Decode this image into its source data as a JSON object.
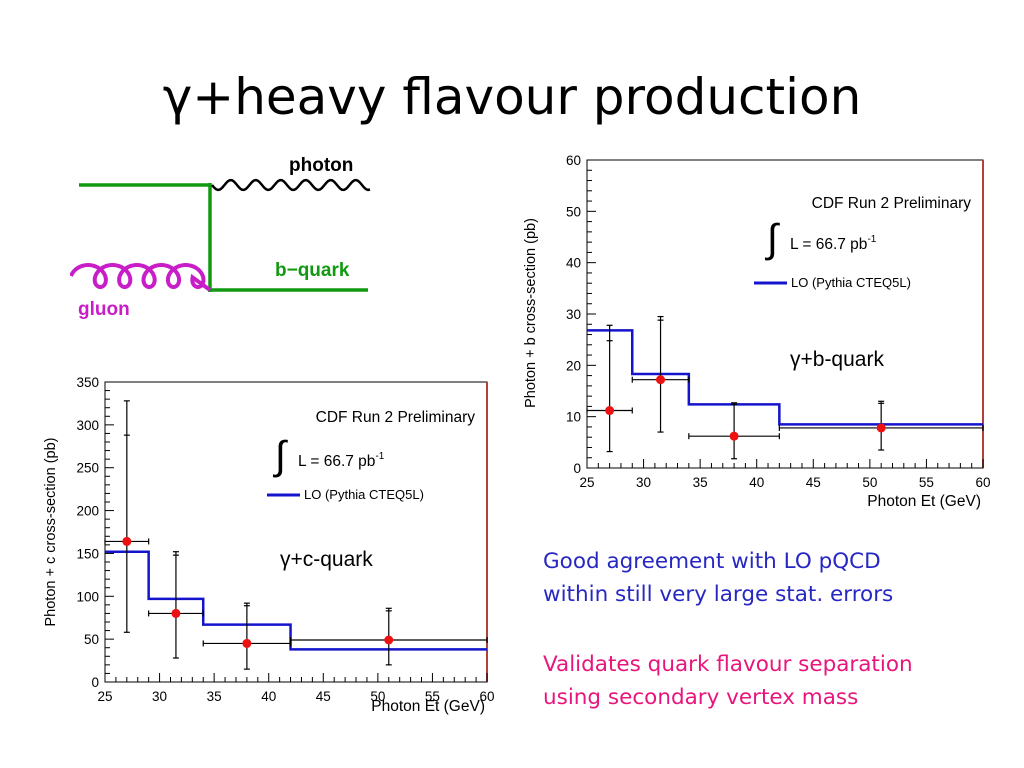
{
  "title": "γ+heavy flavour production",
  "diagram": {
    "labels": {
      "photon": "photon",
      "quark": "b−quark",
      "gluon": "gluon"
    },
    "colors": {
      "quark_line": "#119911",
      "gluon": "#c81ec8",
      "photon": "#000000"
    }
  },
  "colors": {
    "model_line": "#1414cc",
    "data_marker": "#ee1111",
    "frame_edge": "#b3403a",
    "note_blue": "#2727c4",
    "note_pink": "#e8157c"
  },
  "chart_data": [
    {
      "id": "b-quark",
      "type": "line",
      "step": true,
      "header": "CDF Run 2 Preliminary",
      "lumi": {
        "integral": "∫",
        "text": "L = 66.7 pb",
        "exp": "-1"
      },
      "legend": "LO (Pythia CTEQ5L)",
      "label": "γ+b-quark",
      "xlabel": "Photon Et (GeV)",
      "ylabel": "Photon + b cross-section (pb)",
      "xlim": [
        25,
        60
      ],
      "ylim": [
        0,
        60
      ],
      "xticks": [
        25,
        30,
        35,
        40,
        45,
        50,
        55,
        60
      ],
      "yticks": [
        0,
        10,
        20,
        30,
        40,
        50,
        60
      ],
      "lo_prediction": {
        "edges": [
          25,
          29,
          34,
          42,
          60
        ],
        "values": [
          26.8,
          18.3,
          12.4,
          8.5
        ]
      },
      "data": [
        {
          "x": 27,
          "y": 11.2,
          "xlow": 25,
          "xhigh": 29,
          "ylow": 3.2,
          "yhigh": 27.8,
          "yhigh_inner": 24.8
        },
        {
          "x": 31.5,
          "y": 17.2,
          "xlow": 29,
          "xhigh": 34,
          "ylow": 7.0,
          "yhigh": 29.5,
          "yhigh_inner": 28.8
        },
        {
          "x": 38,
          "y": 6.2,
          "xlow": 34,
          "xhigh": 42,
          "ylow": 1.8,
          "yhigh": 12.7,
          "yhigh_inner": 12.4
        },
        {
          "x": 51,
          "y": 7.8,
          "xlow": 42,
          "xhigh": 60,
          "ylow": 3.5,
          "yhigh": 13.0,
          "yhigh_inner": 12.6
        }
      ]
    },
    {
      "id": "c-quark",
      "type": "line",
      "step": true,
      "header": "CDF Run 2 Preliminary",
      "lumi": {
        "integral": "∫",
        "text": "L = 66.7 pb",
        "exp": "-1"
      },
      "legend": "LO (Pythia CTEQ5L)",
      "label": "γ+c-quark",
      "xlabel": "Photon Et (GeV)",
      "ylabel": "Photon + c cross-section (pb)",
      "xlim": [
        25,
        60
      ],
      "ylim": [
        0,
        350
      ],
      "xticks": [
        25,
        30,
        35,
        40,
        45,
        50,
        55,
        60
      ],
      "yticks": [
        0,
        50,
        100,
        150,
        200,
        250,
        300,
        350
      ],
      "lo_prediction": {
        "edges": [
          25,
          29,
          34,
          42,
          60
        ],
        "values": [
          152,
          97,
          67,
          38
        ]
      },
      "data": [
        {
          "x": 27,
          "y": 164,
          "xlow": 25,
          "xhigh": 29,
          "ylow": 58,
          "yhigh": 328,
          "yhigh_inner": 288
        },
        {
          "x": 31.5,
          "y": 80,
          "xlow": 29,
          "xhigh": 34,
          "ylow": 28,
          "yhigh": 152,
          "yhigh_inner": 148
        },
        {
          "x": 38,
          "y": 45,
          "xlow": 34,
          "xhigh": 42,
          "ylow": 15,
          "yhigh": 92,
          "yhigh_inner": 89
        },
        {
          "x": 51,
          "y": 49,
          "xlow": 42,
          "xhigh": 60,
          "ylow": 20,
          "yhigh": 86,
          "yhigh_inner": 83
        }
      ]
    }
  ],
  "notes": {
    "agreement": [
      "Good agreement with LO pQCD",
      "within still very large stat. errors"
    ],
    "validation": [
      "Validates  quark flavour separation",
      "using secondary vertex mass"
    ]
  }
}
